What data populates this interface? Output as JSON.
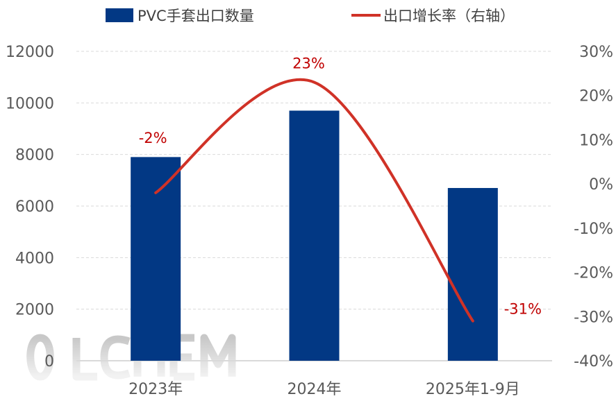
{
  "chart_data": {
    "type": "bar",
    "categories": [
      "2023年",
      "2024年",
      "2025年1-9月"
    ],
    "series": [
      {
        "name": "PVC手套出口数量",
        "type": "bar",
        "axis": "left",
        "values": [
          7900,
          9700,
          6700
        ],
        "color": "#023884"
      },
      {
        "name": "出口增长率（右轴）",
        "type": "line",
        "axis": "right",
        "values": [
          -2,
          23,
          -31
        ],
        "data_labels": [
          "-2%",
          "23%",
          "-31%"
        ],
        "color": "#d03227",
        "smooth": true
      }
    ],
    "left_axis": {
      "ylim": [
        0,
        12000
      ],
      "ticks": [
        "0",
        "2000",
        "4000",
        "6000",
        "8000",
        "10000",
        "12000"
      ]
    },
    "right_axis": {
      "ylim": [
        -40,
        30
      ],
      "ticks": [
        "-40%",
        "-30%",
        "-20%",
        "-10%",
        "0%",
        "10%",
        "20%",
        "30%"
      ]
    },
    "grid": true,
    "legend": "top",
    "watermark": "OILCHEM"
  }
}
